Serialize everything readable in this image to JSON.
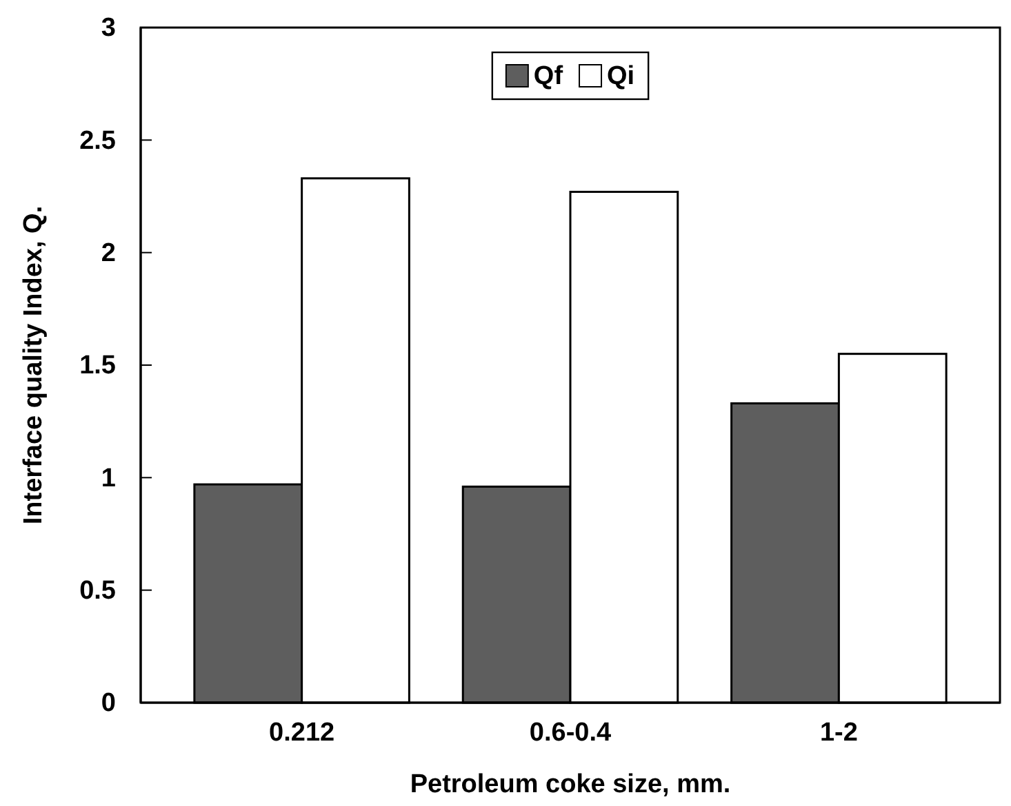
{
  "chart_data": {
    "type": "bar",
    "xlabel": "Petroleum coke size, mm.",
    "ylabel": "Interface quality Index, Q.",
    "categories": [
      "0.212",
      "0.6-0.4",
      "1-2"
    ],
    "series": [
      {
        "name": "Qf",
        "color": "#5e5e5e",
        "values": [
          0.97,
          0.96,
          1.33
        ]
      },
      {
        "name": "Qi",
        "color": "#ffffff",
        "values": [
          2.33,
          2.27,
          1.55
        ]
      }
    ],
    "ylim": [
      0,
      3
    ],
    "yticks": [
      0,
      0.5,
      1,
      1.5,
      2,
      2.5,
      3
    ],
    "legend": "top",
    "grid": false
  }
}
